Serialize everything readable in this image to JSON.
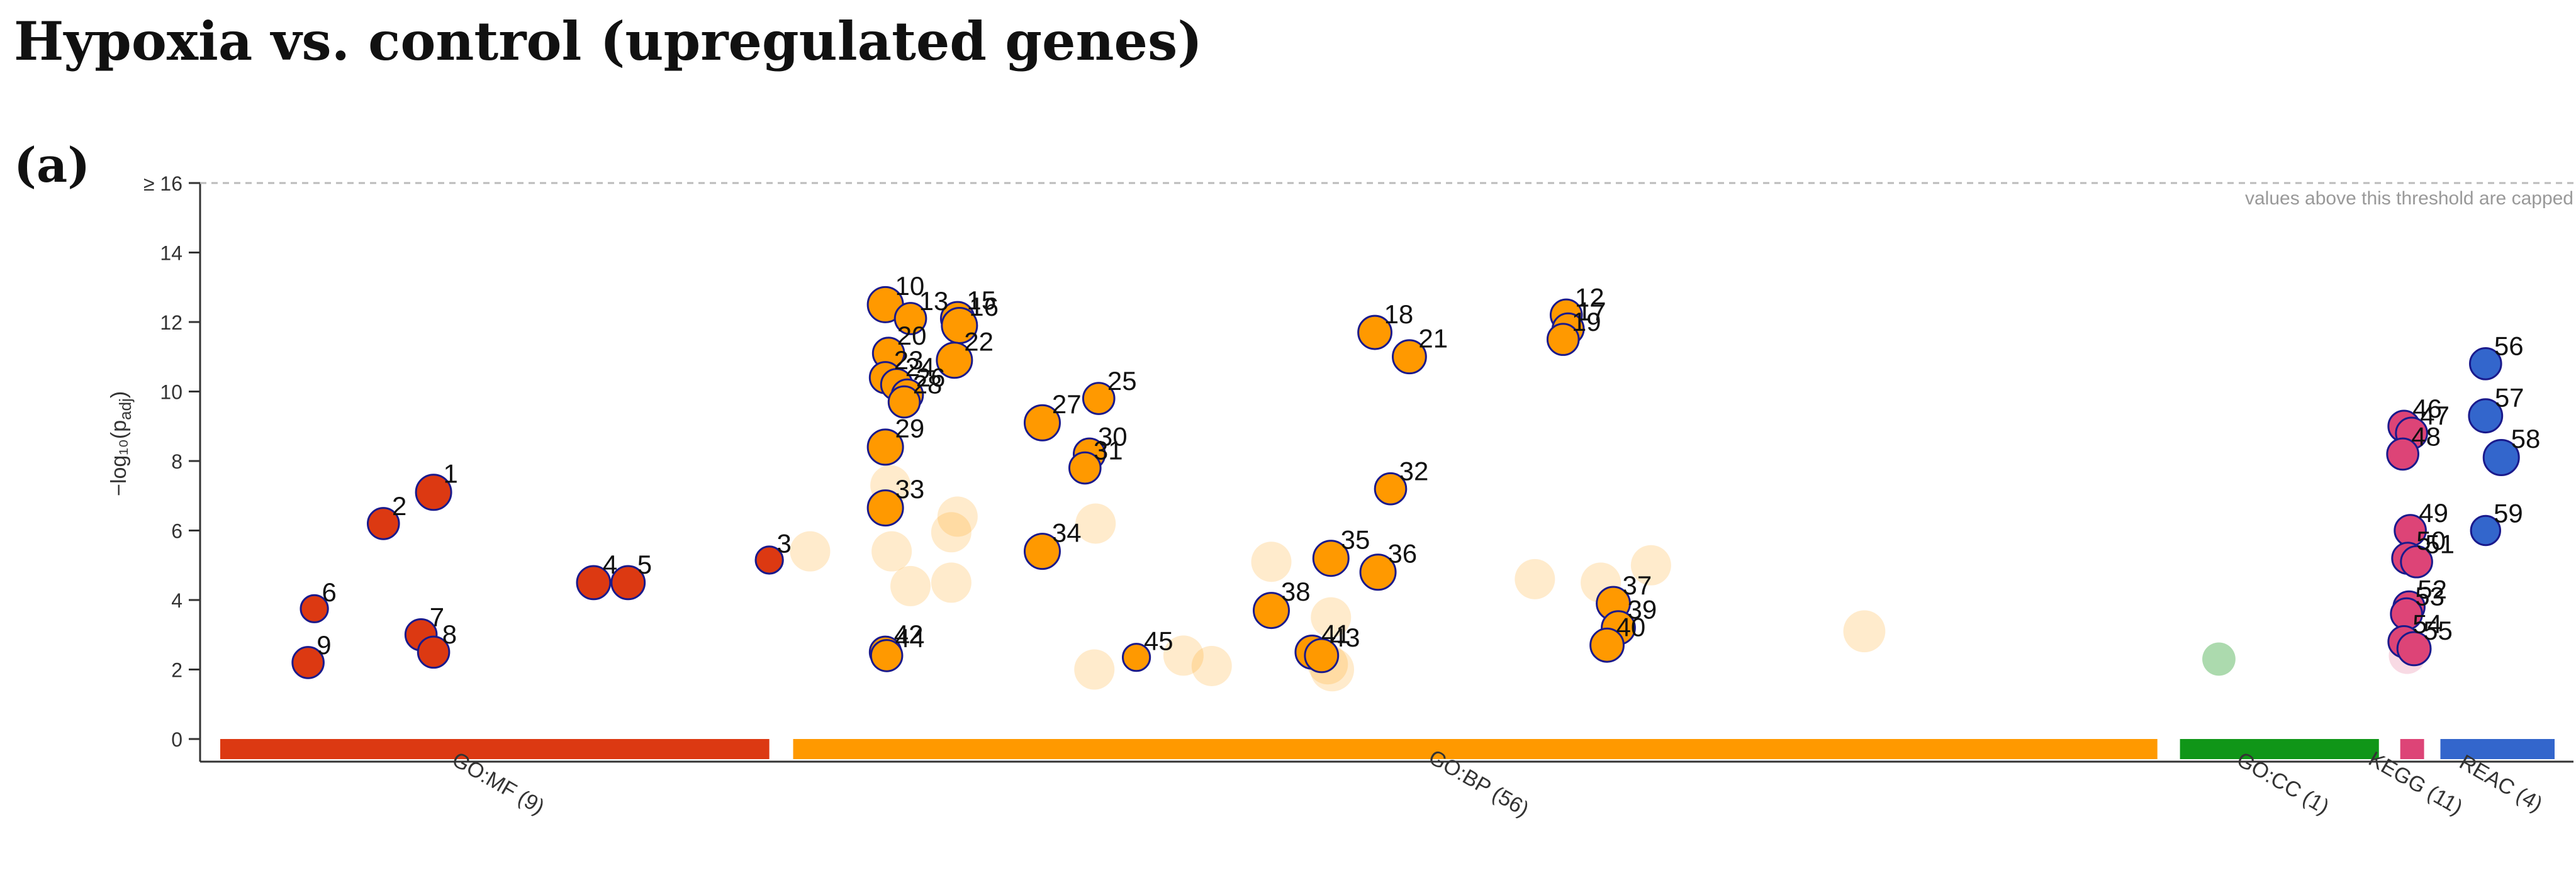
{
  "title": "Hypoxia vs. control (upregulated genes)",
  "panel_label": "(a)",
  "chart_data": {
    "type": "scatter",
    "title": "Hypoxia vs. control (upregulated genes)",
    "xlabel": "",
    "ylabel": "−log₁₀(p",
    "ylabel_sub": "adj",
    "ylabel_close": ")",
    "ylim": [
      0,
      16
    ],
    "yticks": [
      0,
      2,
      4,
      6,
      8,
      10,
      12,
      14
    ],
    "ycap_label": "≥ 16",
    "cap_note": "values above this threshold are capped",
    "grid": false,
    "x_domain": [
      0,
      3680
    ],
    "sources": [
      {
        "name": "GO:MF (9)",
        "start": 0,
        "end": 875,
        "color": "#dc3912"
      },
      {
        "name": "GO:BP (56)",
        "start": 913,
        "end": 3087,
        "color": "#ff9900"
      },
      {
        "name": "GO:CC (1)",
        "start": 3123,
        "end": 3440,
        "color": "#109618"
      },
      {
        "name": "KEGG (11)",
        "start": 3474,
        "end": 3512,
        "color": "#dd4477"
      },
      {
        "name": "REAC (4)",
        "start": 3538,
        "end": 3720,
        "color": "#3366cc"
      }
    ],
    "highlighted": [
      {
        "id": "1",
        "x": 340,
        "y": 7.1,
        "size": 1.0,
        "source": 0
      },
      {
        "id": "2",
        "x": 260,
        "y": 6.2,
        "size": 0.8,
        "source": 0
      },
      {
        "id": "3",
        "x": 875,
        "y": 5.15,
        "size": 0.6,
        "source": 0
      },
      {
        "id": "4",
        "x": 595,
        "y": 4.5,
        "size": 0.9,
        "source": 0
      },
      {
        "id": "5",
        "x": 650,
        "y": 4.5,
        "size": 0.9,
        "source": 0
      },
      {
        "id": "6",
        "x": 150,
        "y": 3.75,
        "size": 0.6,
        "source": 0
      },
      {
        "id": "7",
        "x": 320,
        "y": 3.0,
        "size": 0.8,
        "source": 0
      },
      {
        "id": "8",
        "x": 340,
        "y": 2.5,
        "size": 0.8,
        "source": 0
      },
      {
        "id": "9",
        "x": 140,
        "y": 2.2,
        "size": 0.8,
        "source": 0
      },
      {
        "id": "10",
        "x": 1060,
        "y": 12.5,
        "size": 1.0,
        "source": 1
      },
      {
        "id": "13",
        "x": 1100,
        "y": 12.1,
        "size": 0.8,
        "source": 1
      },
      {
        "id": "15",
        "x": 1175,
        "y": 12.1,
        "size": 0.9,
        "source": 1
      },
      {
        "id": "16",
        "x": 1178,
        "y": 11.9,
        "size": 1.0,
        "source": 1
      },
      {
        "id": "20",
        "x": 1065,
        "y": 11.1,
        "size": 0.8,
        "source": 1
      },
      {
        "id": "22",
        "x": 1170,
        "y": 10.9,
        "size": 1.0,
        "source": 1
      },
      {
        "id": "23",
        "x": 1060,
        "y": 10.4,
        "size": 0.8,
        "source": 1
      },
      {
        "id": "24",
        "x": 1078,
        "y": 10.2,
        "size": 0.8,
        "source": 1
      },
      {
        "id": "26",
        "x": 1095,
        "y": 9.9,
        "size": 0.8,
        "source": 1
      },
      {
        "id": "28",
        "x": 1090,
        "y": 9.7,
        "size": 0.8,
        "source": 1
      },
      {
        "id": "29",
        "x": 1060,
        "y": 8.4,
        "size": 1.0,
        "source": 1
      },
      {
        "id": "33",
        "x": 1060,
        "y": 6.65,
        "size": 1.0,
        "source": 1
      },
      {
        "id": "42",
        "x": 1060,
        "y": 2.5,
        "size": 0.8,
        "source": 1
      },
      {
        "id": "44",
        "x": 1062,
        "y": 2.4,
        "size": 0.8,
        "source": 1
      },
      {
        "id": "27",
        "x": 1310,
        "y": 9.1,
        "size": 1.0,
        "source": 1
      },
      {
        "id": "25",
        "x": 1400,
        "y": 9.8,
        "size": 0.8,
        "source": 1
      },
      {
        "id": "30",
        "x": 1385,
        "y": 8.2,
        "size": 0.8,
        "source": 1
      },
      {
        "id": "31",
        "x": 1378,
        "y": 7.8,
        "size": 0.8,
        "source": 1
      },
      {
        "id": "34",
        "x": 1310,
        "y": 5.4,
        "size": 1.0,
        "source": 1
      },
      {
        "id": "45",
        "x": 1460,
        "y": 2.35,
        "size": 0.6,
        "source": 1
      },
      {
        "id": "18",
        "x": 1840,
        "y": 11.7,
        "size": 0.9,
        "source": 1
      },
      {
        "id": "21",
        "x": 1895,
        "y": 11.0,
        "size": 0.9,
        "source": 1
      },
      {
        "id": "32",
        "x": 1865,
        "y": 7.2,
        "size": 0.8,
        "source": 1
      },
      {
        "id": "35",
        "x": 1770,
        "y": 5.2,
        "size": 1.0,
        "source": 1
      },
      {
        "id": "36",
        "x": 1845,
        "y": 4.8,
        "size": 1.0,
        "source": 1
      },
      {
        "id": "38",
        "x": 1675,
        "y": 3.7,
        "size": 1.0,
        "source": 1
      },
      {
        "id": "41",
        "x": 1740,
        "y": 2.5,
        "size": 0.9,
        "source": 1
      },
      {
        "id": "43",
        "x": 1755,
        "y": 2.4,
        "size": 0.9,
        "source": 1
      },
      {
        "id": "12",
        "x": 2145,
        "y": 12.2,
        "size": 0.8,
        "source": 1
      },
      {
        "id": "17",
        "x": 2148,
        "y": 11.8,
        "size": 0.8,
        "source": 1
      },
      {
        "id": "19",
        "x": 2140,
        "y": 11.5,
        "size": 0.8,
        "source": 1
      },
      {
        "id": "37",
        "x": 2220,
        "y": 3.9,
        "size": 0.9,
        "source": 1
      },
      {
        "id": "39",
        "x": 2228,
        "y": 3.2,
        "size": 0.9,
        "source": 1
      },
      {
        "id": "40",
        "x": 2210,
        "y": 2.7,
        "size": 0.9,
        "source": 1
      },
      {
        "id": "46",
        "x": 3480,
        "y": 9.0,
        "size": 0.8,
        "source": 3
      },
      {
        "id": "47",
        "x": 3492,
        "y": 8.8,
        "size": 0.8,
        "source": 3
      },
      {
        "id": "48",
        "x": 3478,
        "y": 8.2,
        "size": 0.8,
        "source": 3
      },
      {
        "id": "49",
        "x": 3490,
        "y": 6.0,
        "size": 0.8,
        "source": 3
      },
      {
        "id": "50",
        "x": 3486,
        "y": 5.2,
        "size": 0.8,
        "source": 3
      },
      {
        "id": "51",
        "x": 3500,
        "y": 5.1,
        "size": 0.8,
        "source": 3
      },
      {
        "id": "52",
        "x": 3488,
        "y": 3.8,
        "size": 0.8,
        "source": 3
      },
      {
        "id": "53",
        "x": 3484,
        "y": 3.6,
        "size": 0.8,
        "source": 3
      },
      {
        "id": "54",
        "x": 3480,
        "y": 2.8,
        "size": 0.8,
        "source": 3
      },
      {
        "id": "55",
        "x": 3496,
        "y": 2.6,
        "size": 0.9,
        "source": 3
      },
      {
        "id": "56",
        "x": 3610,
        "y": 10.8,
        "size": 0.8,
        "source": 4
      },
      {
        "id": "57",
        "x": 3610,
        "y": 9.3,
        "size": 0.9,
        "source": 4
      },
      {
        "id": "58",
        "x": 3635,
        "y": 8.1,
        "size": 1.0,
        "source": 4
      },
      {
        "id": "59",
        "x": 3610,
        "y": 6.0,
        "size": 0.7,
        "source": 4
      }
    ],
    "background": [
      {
        "x": 940,
        "y": 5.4,
        "size": 1.0,
        "source": 1
      },
      {
        "x": 1068,
        "y": 7.3,
        "size": 1.0,
        "source": 1
      },
      {
        "x": 1070,
        "y": 5.4,
        "size": 1.0,
        "source": 1
      },
      {
        "x": 1100,
        "y": 4.4,
        "size": 1.0,
        "source": 1
      },
      {
        "x": 1165,
        "y": 5.95,
        "size": 1.0,
        "source": 1
      },
      {
        "x": 1175,
        "y": 6.4,
        "size": 1.0,
        "source": 1
      },
      {
        "x": 1165,
        "y": 4.5,
        "size": 1.0,
        "source": 1
      },
      {
        "x": 1395,
        "y": 6.2,
        "size": 1.0,
        "source": 1
      },
      {
        "x": 1393,
        "y": 2.0,
        "size": 1.0,
        "source": 1
      },
      {
        "x": 1535,
        "y": 2.4,
        "size": 1.0,
        "source": 1
      },
      {
        "x": 1580,
        "y": 2.1,
        "size": 1.0,
        "source": 1
      },
      {
        "x": 1675,
        "y": 5.1,
        "size": 1.0,
        "source": 1
      },
      {
        "x": 1770,
        "y": 3.5,
        "size": 1.0,
        "source": 1
      },
      {
        "x": 1765,
        "y": 2.15,
        "size": 1.0,
        "source": 1
      },
      {
        "x": 1772,
        "y": 2.0,
        "size": 1.2,
        "source": 1
      },
      {
        "x": 2095,
        "y": 4.6,
        "size": 1.0,
        "source": 1
      },
      {
        "x": 2200,
        "y": 4.5,
        "size": 1.0,
        "source": 1
      },
      {
        "x": 2280,
        "y": 5.0,
        "size": 1.0,
        "source": 1
      },
      {
        "x": 2620,
        "y": 3.1,
        "size": 1.1,
        "source": 1
      },
      {
        "x": 3185,
        "y": 2.3,
        "size": 0.6,
        "source": 2
      },
      {
        "x": 3485,
        "y": 2.4,
        "size": 0.8,
        "source": 3
      }
    ]
  }
}
